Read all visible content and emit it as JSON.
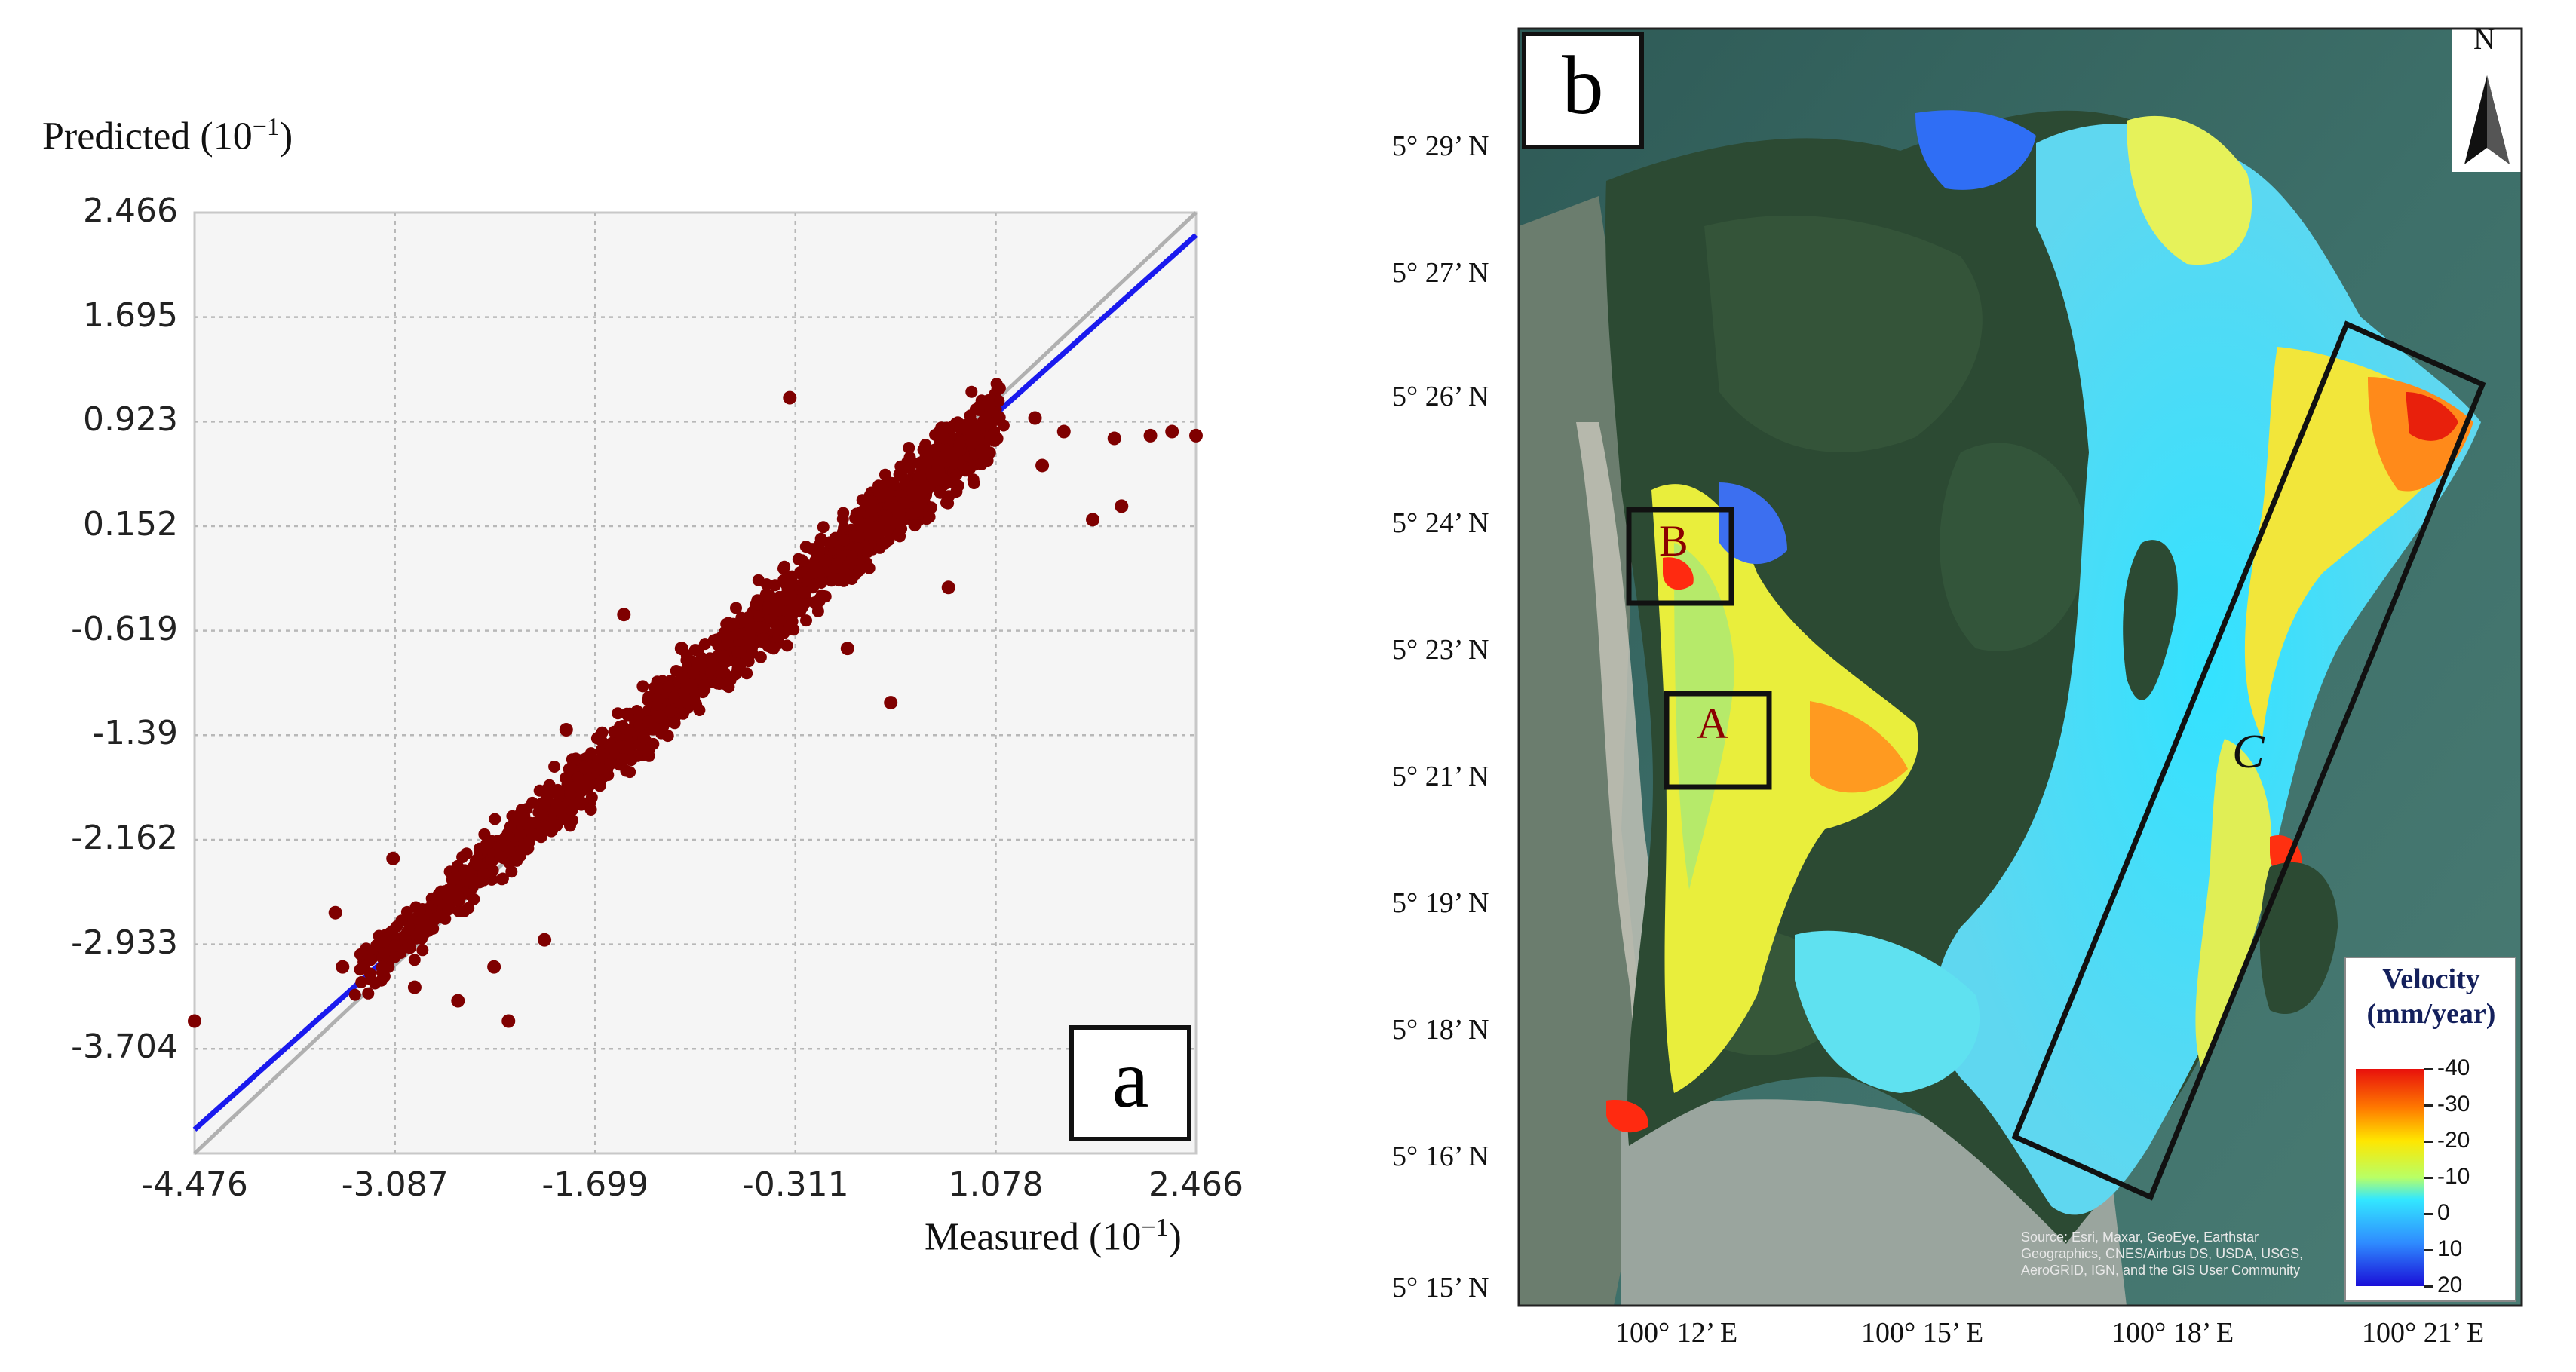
{
  "chart_data": {
    "type": "scatter",
    "panel_label": "a",
    "xlabel_text": "Measured",
    "ylabel_text": "Predicted",
    "unit_base": "10",
    "unit_exp": "−1",
    "xlim": [
      -4.476,
      2.466
    ],
    "ylim": [
      -4.476,
      2.466
    ],
    "x_ticks": [
      "-4.476",
      "-3.087",
      "-1.699",
      "-0.311",
      "1.078",
      "2.466"
    ],
    "y_ticks": [
      "2.466",
      "1.695",
      "0.923",
      "0.152",
      "-0.619",
      "-1.39",
      "-2.162",
      "-2.933",
      "-3.704"
    ],
    "grid": true,
    "series": [
      {
        "name": "identity line",
        "type": "line",
        "color": "#b0b0b0",
        "points": [
          [
            -4.476,
            -4.476
          ],
          [
            2.466,
            2.466
          ]
        ]
      },
      {
        "name": "regression fit",
        "type": "line",
        "color": "#1a1aee",
        "points": [
          [
            -4.476,
            -4.3
          ],
          [
            2.466,
            2.3
          ]
        ]
      },
      {
        "name": "samples",
        "type": "scatter",
        "color": "#7f0000",
        "outliers": [
          [
            -4.476,
            -3.5
          ],
          [
            -3.5,
            -2.7
          ],
          [
            -3.45,
            -3.1
          ],
          [
            -3.1,
            -2.3
          ],
          [
            -2.95,
            -3.25
          ],
          [
            -2.65,
            -3.35
          ],
          [
            -2.4,
            -3.1
          ],
          [
            -2.3,
            -3.5
          ],
          [
            -2.05,
            -2.9
          ],
          [
            -1.9,
            -1.35
          ],
          [
            -1.5,
            -0.5
          ],
          [
            -1.1,
            -0.75
          ],
          [
            -0.35,
            1.1
          ],
          [
            -0.15,
            -0.4
          ],
          [
            0.05,
            -0.75
          ],
          [
            0.35,
            -1.15
          ],
          [
            0.55,
            0.5
          ],
          [
            0.75,
            -0.3
          ],
          [
            1.35,
            0.95
          ],
          [
            1.55,
            0.85
          ],
          [
            1.4,
            0.6
          ],
          [
            1.9,
            0.8
          ],
          [
            2.15,
            0.82
          ],
          [
            2.466,
            0.82
          ],
          [
            1.95,
            0.3
          ],
          [
            1.75,
            0.2
          ],
          [
            2.3,
            0.85
          ]
        ]
      }
    ]
  },
  "map": {
    "panel_label": "b",
    "north_label": "N",
    "lat_labels": [
      "5° 29’ N",
      "5° 27’ N",
      "5° 26’ N",
      "5° 24’ N",
      "5° 23’ N",
      "5° 21’ N",
      "5° 19’ N",
      "5° 18’ N",
      "5° 16’ N",
      "5° 15’ N"
    ],
    "lon_labels": [
      "100° 12’ E",
      "100° 15’ E",
      "100° 18’ E",
      "100° 21’ E"
    ],
    "area_labels": [
      "A",
      "B",
      "C"
    ],
    "legend": {
      "title_line1": "Velocity",
      "title_line2": "(mm/year)",
      "ticks": [
        "-40",
        "-30",
        "-20",
        "-10",
        "0",
        "10",
        "20"
      ]
    },
    "attribution": "Source: Esri, Maxar, GeoEye, Earthstar Geographics, CNES/Airbus DS, USDA, USGS, AeroGRID, IGN, and the GIS User Community"
  }
}
